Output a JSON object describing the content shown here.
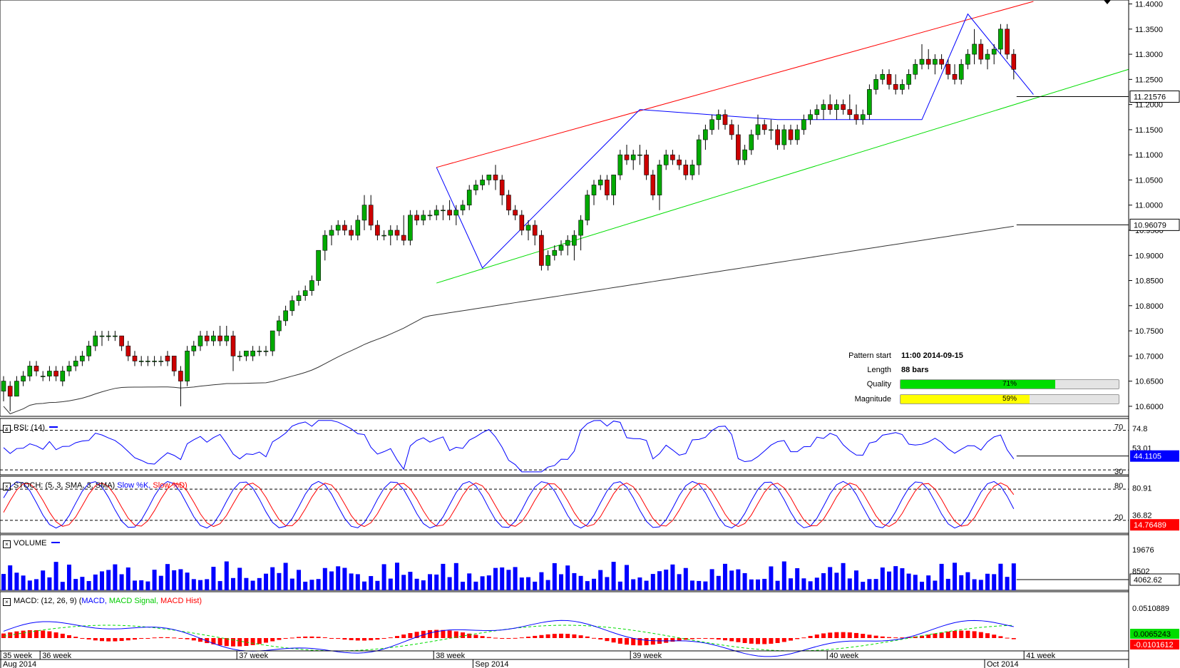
{
  "pattern_info": {
    "start_label": "Pattern start",
    "start_value": "11:00 2014-09-15",
    "length_label": "Length",
    "length_value": "88 bars",
    "quality_label": "Quality",
    "quality_value": "71%",
    "quality_fraction": 0.71,
    "magnitude_label": "Magnitude",
    "magnitude_value": "59%",
    "magnitude_fraction": 0.59,
    "quality_color": "#00dd00",
    "magnitude_color": "#ffff00"
  },
  "panels": {
    "rsi_title": "RSI: (14)",
    "stoch_title": "STOCH: (5, 3, SMA, 3, SMA)",
    "stoch_k": "Slow %K,",
    "stoch_d": "Slow %D)",
    "volume_title": "VOLUME",
    "macd_title": "MACD: (12, 26, 9)",
    "macd_main": "MACD,",
    "macd_signal": "MACD Signal,",
    "macd_hist": "MACD Hist)"
  },
  "colors": {
    "bull": "#00aa00",
    "bear": "#cc0000",
    "channel_top": "#ff0000",
    "channel_bottom": "#00dd00",
    "pattern_line": "#0000ff",
    "ma_line": "#333333",
    "rsi_line": "#0000ff",
    "stoch_k": "#0000ff",
    "stoch_d": "#ff0000",
    "volume": "#0000ff",
    "macd_line": "#0000ff",
    "macd_signal": "#00dd00",
    "macd_hist": "#ff0000"
  },
  "time_axis": {
    "week_labels": [
      {
        "label": "35 week",
        "bar": 0
      },
      {
        "label": "36 week",
        "bar": 6
      },
      {
        "label": "37 week",
        "bar": 36
      },
      {
        "label": "38 week",
        "bar": 66
      },
      {
        "label": "39 week",
        "bar": 96
      },
      {
        "label": "40 week",
        "bar": 126
      },
      {
        "label": "41 week",
        "bar": 156
      }
    ],
    "month_labels": [
      {
        "label": "Aug 2014",
        "bar": 0
      },
      {
        "label": "Sep 2014",
        "bar": 72
      },
      {
        "label": "Oct 2014",
        "bar": 150
      }
    ]
  },
  "chart_data": [
    {
      "type": "candlestick",
      "title": "",
      "yticks": [
        "11.4000",
        "11.3500",
        "11.3000",
        "11.2500",
        "11.2000",
        "11.1500",
        "11.1000",
        "11.0500",
        "11.0000",
        "10.9500",
        "10.9000",
        "10.8500",
        "10.8000",
        "10.7500",
        "10.7000",
        "10.6500",
        "10.6000"
      ],
      "ylim": [
        10.58,
        11.405
      ],
      "last_price": "11.21576",
      "ma_value": "10.96079",
      "ohlc": [
        [
          10.63,
          10.66,
          10.61,
          10.65
        ],
        [
          10.64,
          10.65,
          10.59,
          10.62
        ],
        [
          10.62,
          10.66,
          10.62,
          10.65
        ],
        [
          10.65,
          10.67,
          10.64,
          10.66
        ],
        [
          10.66,
          10.69,
          10.65,
          10.68
        ],
        [
          10.68,
          10.69,
          10.66,
          10.67
        ],
        [
          10.66,
          10.67,
          10.65,
          10.66
        ],
        [
          10.66,
          10.68,
          10.65,
          10.67
        ],
        [
          10.67,
          10.68,
          10.65,
          10.66
        ],
        [
          10.65,
          10.68,
          10.64,
          10.67
        ],
        [
          10.67,
          10.69,
          10.66,
          10.68
        ],
        [
          10.68,
          10.7,
          10.67,
          10.69
        ],
        [
          10.69,
          10.71,
          10.68,
          10.7
        ],
        [
          10.7,
          10.73,
          10.69,
          10.72
        ],
        [
          10.72,
          10.75,
          10.71,
          10.74
        ],
        [
          10.74,
          10.75,
          10.72,
          10.74
        ],
        [
          10.74,
          10.75,
          10.73,
          10.74
        ],
        [
          10.74,
          10.75,
          10.73,
          10.74
        ],
        [
          10.74,
          10.74,
          10.71,
          10.72
        ],
        [
          10.72,
          10.73,
          10.69,
          10.7
        ],
        [
          10.7,
          10.71,
          10.68,
          10.69
        ],
        [
          10.69,
          10.7,
          10.68,
          10.69
        ],
        [
          10.69,
          10.7,
          10.68,
          10.69
        ],
        [
          10.69,
          10.7,
          10.68,
          10.69
        ],
        [
          10.69,
          10.7,
          10.68,
          10.69
        ],
        [
          10.7,
          10.71,
          10.68,
          10.69
        ],
        [
          10.7,
          10.7,
          10.66,
          10.67
        ],
        [
          10.67,
          10.68,
          10.6,
          10.65
        ],
        [
          10.65,
          10.72,
          10.64,
          10.71
        ],
        [
          10.71,
          10.73,
          10.7,
          10.72
        ],
        [
          10.72,
          10.75,
          10.71,
          10.74
        ],
        [
          10.74,
          10.75,
          10.72,
          10.73
        ],
        [
          10.73,
          10.75,
          10.72,
          10.74
        ],
        [
          10.74,
          10.76,
          10.72,
          10.73
        ],
        [
          10.73,
          10.76,
          10.72,
          10.74
        ],
        [
          10.74,
          10.75,
          10.67,
          10.7
        ],
        [
          10.7,
          10.71,
          10.69,
          10.7
        ],
        [
          10.7,
          10.71,
          10.69,
          10.71
        ],
        [
          10.7,
          10.72,
          10.69,
          10.71
        ],
        [
          10.71,
          10.72,
          10.7,
          10.71
        ],
        [
          10.71,
          10.72,
          10.7,
          10.71
        ],
        [
          10.71,
          10.75,
          10.7,
          10.75
        ],
        [
          10.75,
          10.78,
          10.74,
          10.77
        ],
        [
          10.77,
          10.8,
          10.76,
          10.79
        ],
        [
          10.79,
          10.82,
          10.78,
          10.81
        ],
        [
          10.81,
          10.83,
          10.8,
          10.82
        ],
        [
          10.82,
          10.84,
          10.81,
          10.83
        ],
        [
          10.83,
          10.86,
          10.82,
          10.85
        ],
        [
          10.85,
          10.91,
          10.84,
          10.91
        ],
        [
          10.91,
          10.95,
          10.89,
          10.94
        ],
        [
          10.94,
          10.96,
          10.92,
          10.95
        ],
        [
          10.95,
          10.97,
          10.94,
          10.96
        ],
        [
          10.96,
          10.97,
          10.94,
          10.95
        ],
        [
          10.95,
          10.96,
          10.93,
          10.94
        ],
        [
          10.94,
          10.98,
          10.93,
          10.97
        ],
        [
          10.97,
          11.02,
          10.95,
          11.0
        ],
        [
          11.0,
          11.02,
          10.95,
          10.96
        ],
        [
          10.96,
          10.97,
          10.93,
          10.94
        ],
        [
          10.94,
          10.95,
          10.93,
          10.94
        ],
        [
          10.94,
          10.96,
          10.92,
          10.95
        ],
        [
          10.95,
          10.96,
          10.93,
          10.94
        ],
        [
          10.94,
          10.98,
          10.92,
          10.93
        ],
        [
          10.93,
          10.99,
          10.92,
          10.98
        ],
        [
          10.98,
          10.99,
          10.96,
          10.97
        ],
        [
          10.97,
          10.99,
          10.96,
          10.98
        ],
        [
          10.98,
          10.99,
          10.97,
          10.98
        ],
        [
          10.98,
          11.0,
          10.97,
          10.99
        ],
        [
          10.99,
          11.0,
          10.97,
          10.99
        ],
        [
          10.99,
          11.01,
          10.97,
          10.98
        ],
        [
          10.98,
          11.0,
          10.96,
          10.99
        ],
        [
          10.99,
          11.01,
          10.98,
          11.0
        ],
        [
          11.0,
          11.04,
          10.99,
          11.03
        ],
        [
          11.03,
          11.05,
          11.02,
          11.04
        ],
        [
          11.04,
          11.06,
          11.03,
          11.05
        ],
        [
          11.05,
          11.06,
          11.04,
          11.06
        ],
        [
          11.06,
          11.08,
          11.03,
          11.05
        ],
        [
          11.05,
          11.06,
          11.0,
          11.02
        ],
        [
          11.02,
          11.03,
          10.98,
          10.99
        ],
        [
          10.99,
          11.0,
          10.97,
          10.98
        ],
        [
          10.98,
          10.99,
          10.94,
          10.95
        ],
        [
          10.95,
          10.97,
          10.93,
          10.96
        ],
        [
          10.96,
          10.97,
          10.92,
          10.94
        ],
        [
          10.94,
          10.95,
          10.87,
          10.88
        ],
        [
          10.88,
          10.91,
          10.87,
          10.9
        ],
        [
          10.9,
          10.92,
          10.89,
          10.91
        ],
        [
          10.91,
          10.93,
          10.9,
          10.92
        ],
        [
          10.92,
          10.94,
          10.9,
          10.93
        ],
        [
          10.92,
          10.95,
          10.89,
          10.94
        ],
        [
          10.94,
          10.98,
          10.91,
          10.97
        ],
        [
          10.97,
          11.03,
          10.96,
          11.02
        ],
        [
          11.02,
          11.05,
          11.0,
          11.04
        ],
        [
          11.04,
          11.06,
          11.03,
          11.05
        ],
        [
          11.05,
          11.06,
          11.01,
          11.02
        ],
        [
          11.02,
          11.06,
          11.0,
          11.06
        ],
        [
          11.06,
          11.11,
          11.05,
          11.1
        ],
        [
          11.1,
          11.12,
          11.08,
          11.09
        ],
        [
          11.09,
          11.11,
          11.07,
          11.1
        ],
        [
          11.1,
          11.12,
          11.08,
          11.1
        ],
        [
          11.1,
          11.11,
          11.05,
          11.06
        ],
        [
          11.06,
          11.07,
          11.01,
          11.02
        ],
        [
          11.02,
          11.09,
          10.99,
          11.08
        ],
        [
          11.08,
          11.11,
          11.07,
          11.1
        ],
        [
          11.1,
          11.11,
          11.08,
          11.09
        ],
        [
          11.09,
          11.1,
          11.07,
          11.08
        ],
        [
          11.08,
          11.09,
          11.05,
          11.06
        ],
        [
          11.06,
          11.09,
          11.05,
          11.08
        ],
        [
          11.08,
          11.14,
          11.06,
          11.13
        ],
        [
          11.13,
          11.16,
          11.11,
          11.15
        ],
        [
          11.15,
          11.18,
          11.14,
          11.17
        ],
        [
          11.17,
          11.19,
          11.15,
          11.18
        ],
        [
          11.18,
          11.19,
          11.15,
          11.16
        ],
        [
          11.16,
          11.17,
          11.13,
          11.14
        ],
        [
          11.14,
          11.16,
          11.08,
          11.09
        ],
        [
          11.09,
          11.12,
          11.08,
          11.11
        ],
        [
          11.11,
          11.15,
          11.1,
          11.14
        ],
        [
          11.14,
          11.18,
          11.13,
          11.16
        ],
        [
          11.16,
          11.17,
          11.14,
          11.15
        ],
        [
          11.15,
          11.17,
          11.13,
          11.15
        ],
        [
          11.15,
          11.16,
          11.11,
          11.12
        ],
        [
          11.12,
          11.16,
          11.11,
          11.15
        ],
        [
          11.15,
          11.16,
          11.12,
          11.13
        ],
        [
          11.13,
          11.16,
          11.12,
          11.15
        ],
        [
          11.15,
          11.18,
          11.14,
          11.17
        ],
        [
          11.17,
          11.19,
          11.16,
          11.18
        ],
        [
          11.18,
          11.2,
          11.17,
          11.19
        ],
        [
          11.19,
          11.21,
          11.17,
          11.2
        ],
        [
          11.2,
          11.22,
          11.18,
          11.19
        ],
        [
          11.19,
          11.21,
          11.17,
          11.2
        ],
        [
          11.2,
          11.21,
          11.18,
          11.19
        ],
        [
          11.19,
          11.22,
          11.17,
          11.18
        ],
        [
          11.18,
          11.2,
          11.16,
          11.17
        ],
        [
          11.17,
          11.19,
          11.16,
          11.18
        ],
        [
          11.18,
          11.24,
          11.17,
          11.23
        ],
        [
          11.23,
          11.26,
          11.22,
          11.25
        ],
        [
          11.25,
          11.27,
          11.24,
          11.26
        ],
        [
          11.26,
          11.27,
          11.23,
          11.24
        ],
        [
          11.24,
          11.26,
          11.22,
          11.23
        ],
        [
          11.23,
          11.25,
          11.22,
          11.24
        ],
        [
          11.24,
          11.27,
          11.23,
          11.26
        ],
        [
          11.26,
          11.29,
          11.25,
          11.28
        ],
        [
          11.28,
          11.32,
          11.27,
          11.29
        ],
        [
          11.29,
          11.31,
          11.27,
          11.28
        ],
        [
          11.28,
          11.3,
          11.26,
          11.29
        ],
        [
          11.29,
          11.3,
          11.27,
          11.28
        ],
        [
          11.28,
          11.29,
          11.25,
          11.26
        ],
        [
          11.26,
          11.28,
          11.24,
          11.25
        ],
        [
          11.25,
          11.29,
          11.24,
          11.28
        ],
        [
          11.28,
          11.31,
          11.27,
          11.3
        ],
        [
          11.3,
          11.35,
          11.28,
          11.32
        ],
        [
          11.32,
          11.33,
          11.28,
          11.29
        ],
        [
          11.29,
          11.31,
          11.27,
          11.3
        ],
        [
          11.3,
          11.32,
          11.28,
          11.31
        ],
        [
          11.31,
          11.36,
          11.3,
          11.35
        ],
        [
          11.35,
          11.36,
          11.29,
          11.3
        ],
        [
          11.3,
          11.31,
          11.25,
          11.27
        ]
      ]
    },
    {
      "type": "line",
      "title": "RSI: (14)",
      "levels": [
        70,
        30
      ],
      "tick_labels": [
        "74.8",
        "53.01",
        "30"
      ],
      "last_value": "44.1105"
    },
    {
      "type": "line",
      "title": "STOCH: (5, 3, SMA, 3, SMA)",
      "levels": [
        80,
        20
      ],
      "tick_labels": [
        "80",
        "80.91",
        "36.82",
        "20"
      ],
      "last_value": "14.76489"
    },
    {
      "type": "bar",
      "title": "VOLUME",
      "tick_labels": [
        "19676",
        "8502"
      ],
      "last_value": "4062.62"
    },
    {
      "type": "line",
      "title": "MACD: (12, 26, 9)",
      "tick_labels": [
        "0.0510889"
      ],
      "macd_value": "0.0065243",
      "hist_value": "-0.0101612"
    }
  ]
}
